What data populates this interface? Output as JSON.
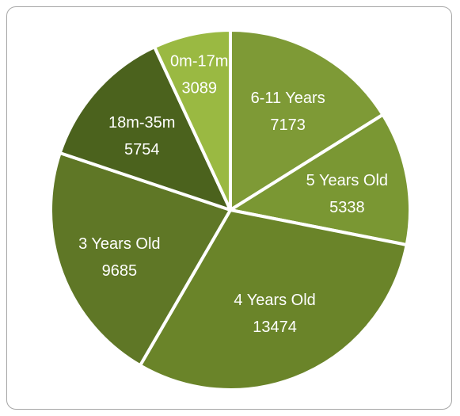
{
  "chart_data": {
    "type": "pie",
    "title": "",
    "categories": [
      "6-11 Years",
      "5 Years Old",
      "4 Years Old",
      "3 Years Old",
      "18m-35m",
      "0m-17m"
    ],
    "values": [
      7173,
      5338,
      13474,
      9685,
      5754,
      3089
    ],
    "labels": [
      {
        "name": "6-11 Years",
        "value": "7173"
      },
      {
        "name": "5 Years Old",
        "value": "5338"
      },
      {
        "name": "4 Years Old",
        "value": "13474"
      },
      {
        "name": "3 Years Old",
        "value": "9685"
      },
      {
        "name": "18m-35m",
        "value": "5754"
      },
      {
        "name": "0m-17m",
        "value": "3089"
      }
    ],
    "colors": [
      "#7e9a36",
      "#7a9733",
      "#6a8429",
      "#5f7726",
      "#4b621d",
      "#9ab942"
    ],
    "start_angle_deg": 0,
    "direction": "clockwise",
    "legend": "none"
  }
}
